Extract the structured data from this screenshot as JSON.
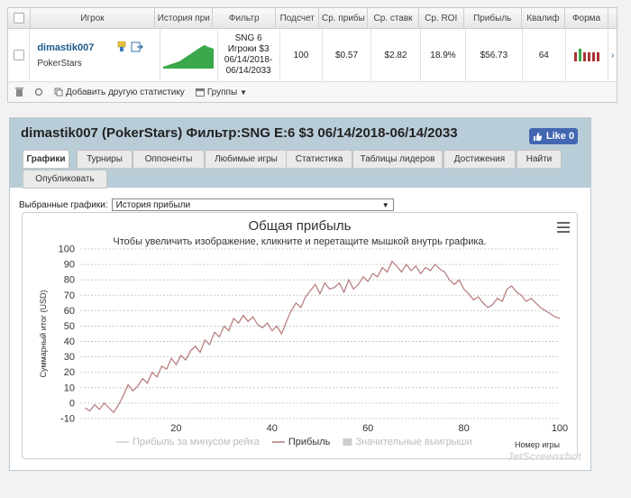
{
  "table": {
    "headers": [
      "Игрок",
      "История при",
      "Фильтр",
      "Подсчет",
      "Ср. прибы",
      "Ср. ставк",
      "Ср. ROI",
      "Прибыль",
      "Квалиф",
      "Форма"
    ],
    "row": {
      "player": "dimastik007",
      "site": "PokerStars",
      "filter_lines": [
        "SNG 6",
        "Игроки $3",
        "06/14/2018-",
        "06/14/2033"
      ],
      "count": "100",
      "avg_profit": "$0.57",
      "avg_stake": "$2.82",
      "avg_roi": "18.9%",
      "profit": "$56.73",
      "qualif": "64",
      "more": "›"
    },
    "footer": {
      "add_stats": "Добавить другую статистику",
      "groups": "Группы"
    }
  },
  "panel": {
    "title": "dimastik007 (PokerStars) Фильтр:SNG E:6 $3 06/14/2018-06/14/2033",
    "like": "Like 0",
    "tabs": [
      "Графики",
      "Турниры",
      "Оппоненты",
      "Любимые игры",
      "Статистика",
      "Таблицы лидеров",
      "Достижения",
      "Найти",
      "Опубликовать"
    ],
    "selector_label": "Выбранные графики:",
    "selector_value": "История прибыли"
  },
  "chart_data": {
    "type": "line",
    "title": "Общая прибыль",
    "subtitle": "Чтобы увеличить изображение, кликните и перетащите мышкой внутрь графика.",
    "ylabel": "Суммарный итог (USD)",
    "xlabel": "Номер игры",
    "ylim": [
      -10,
      100
    ],
    "xlim": [
      0,
      100
    ],
    "yticks": [
      -10,
      0,
      10,
      20,
      30,
      40,
      50,
      60,
      70,
      80,
      90,
      100
    ],
    "xticks": [
      20,
      40,
      60,
      80,
      100
    ],
    "grid": true,
    "legend_placement": "bottom",
    "series": [
      {
        "name": "Прибыль за минусом рейка",
        "visible": false,
        "color": "#cccccc",
        "values": []
      },
      {
        "name": "Прибыль",
        "visible": true,
        "color": "#b47878",
        "x": [
          1,
          2,
          3,
          4,
          5,
          6,
          7,
          8,
          9,
          10,
          11,
          12,
          13,
          14,
          15,
          16,
          17,
          18,
          19,
          20,
          21,
          22,
          23,
          24,
          25,
          26,
          27,
          28,
          29,
          30,
          31,
          32,
          33,
          34,
          35,
          36,
          37,
          38,
          39,
          40,
          41,
          42,
          43,
          44,
          45,
          46,
          47,
          48,
          49,
          50,
          51,
          52,
          53,
          54,
          55,
          56,
          57,
          58,
          59,
          60,
          61,
          62,
          63,
          64,
          65,
          66,
          67,
          68,
          69,
          70,
          71,
          72,
          73,
          74,
          75,
          76,
          77,
          78,
          79,
          80,
          81,
          82,
          83,
          84,
          85,
          86,
          87,
          88,
          89,
          90,
          91,
          92,
          93,
          94,
          95,
          96,
          97,
          98,
          99,
          100
        ],
        "values": [
          -3,
          -5,
          -1,
          -4,
          0,
          -3,
          -6,
          -1,
          5,
          12,
          8,
          11,
          16,
          13,
          20,
          17,
          24,
          22,
          29,
          25,
          31,
          28,
          34,
          37,
          33,
          41,
          38,
          46,
          43,
          50,
          47,
          55,
          52,
          57,
          53,
          56,
          51,
          49,
          52,
          47,
          50,
          45,
          53,
          60,
          65,
          62,
          69,
          73,
          77,
          71,
          78,
          74,
          75,
          78,
          72,
          80,
          74,
          77,
          82,
          79,
          84,
          82,
          88,
          85,
          92,
          89,
          85,
          90,
          86,
          89,
          84,
          88,
          86,
          90,
          87,
          85,
          80,
          77,
          80,
          74,
          71,
          67,
          69,
          65,
          62,
          64,
          68,
          66,
          74,
          76,
          72,
          70,
          66,
          68,
          65,
          62,
          60,
          58,
          56,
          55
        ]
      },
      {
        "name": "Значительные выигрыши",
        "visible": false,
        "color": "#cccccc",
        "values": []
      }
    ]
  }
}
